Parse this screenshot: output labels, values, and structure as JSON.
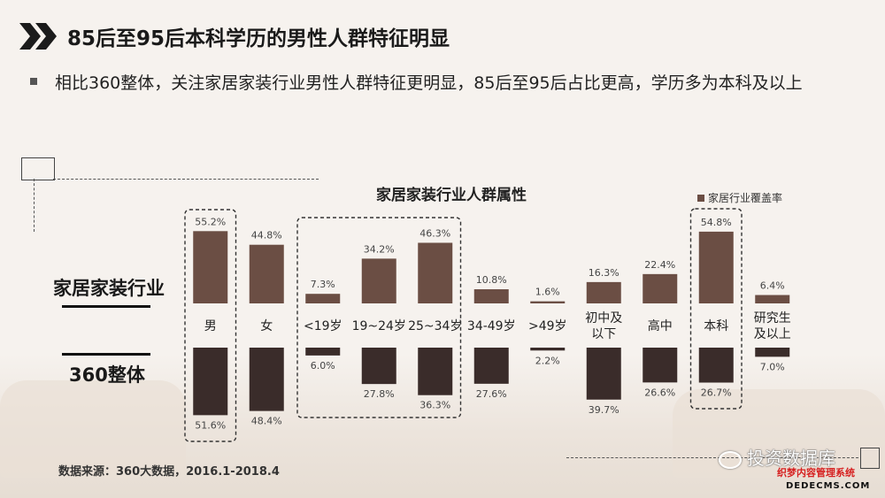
{
  "title": "85后至95后本科学历的男性人群特征明显",
  "bullet": "相比360整体，关注家居家装行业男性人群特征更明显，85后至95后占比更高，学历多为本科及以上",
  "row_labels": {
    "top": "家居家装行业",
    "bottom": "360整体"
  },
  "source": "数据来源：360大数据，2016.1-2018.4",
  "watermark": "投资数据库",
  "site_mark": "织梦内容管理系统",
  "site_domain": "DEDECMS.COM",
  "colors": {
    "top_bar": "#6b4e44",
    "bottom_bar": "#3a2c2a",
    "highlight_border": "#333333"
  },
  "chart_data": {
    "type": "bar",
    "title": "家居家装行业人群属性",
    "legend": {
      "label": "家居行业覆盖率",
      "position": "top-right"
    },
    "categories": [
      "男",
      "女",
      "<19岁",
      "19~24岁",
      "25~34岁",
      "34-49岁",
      ">49岁",
      "初中及以下",
      "高中",
      "本科",
      "研究生及以上"
    ],
    "category_lines": [
      [
        "男"
      ],
      [
        "女"
      ],
      [
        "<19岁"
      ],
      [
        "19~24岁"
      ],
      [
        "25~34岁"
      ],
      [
        "34-49岁"
      ],
      [
        ">49岁"
      ],
      [
        "初中及",
        "以下"
      ],
      [
        "高中"
      ],
      [
        "本科"
      ],
      [
        "研究生",
        "及以上"
      ]
    ],
    "series": [
      {
        "name": "家居家装行业",
        "values": [
          55.2,
          44.8,
          7.3,
          34.2,
          46.3,
          10.8,
          1.6,
          16.3,
          22.4,
          54.8,
          6.4
        ],
        "labels": [
          "55.2%",
          "44.8%",
          "7.3%",
          "34.2%",
          "46.3%",
          "10.8%",
          "1.6%",
          "16.3%",
          "22.4%",
          "54.8%",
          "6.4%"
        ]
      },
      {
        "name": "360整体",
        "values": [
          51.6,
          48.4,
          6.0,
          27.8,
          36.3,
          27.6,
          2.2,
          39.7,
          26.6,
          26.7,
          7.0
        ],
        "labels": [
          "51.6%",
          "48.4%",
          "6.0%",
          "27.8%",
          "36.3%",
          "27.6%",
          "2.2%",
          "39.7%",
          "26.6%",
          "26.7%",
          "7.0%"
        ]
      }
    ],
    "highlight_groups": [
      [
        0,
        0
      ],
      [
        2,
        4
      ],
      [
        9,
        9
      ]
    ],
    "grid": false
  }
}
